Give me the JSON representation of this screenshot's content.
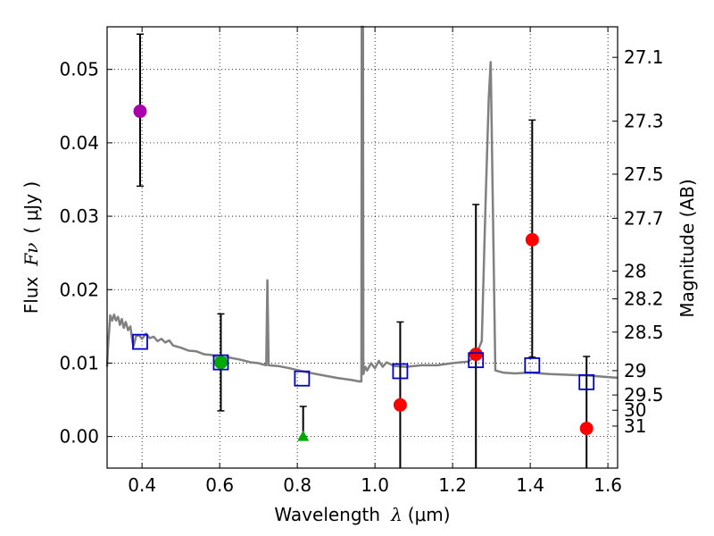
{
  "chart_data": {
    "type": "scatter",
    "title": "",
    "xlabel_main": "Wavelength",
    "xlabel_symbol": "λ",
    "xlabel_unit": "(μm)",
    "ylabel_main": "Flux",
    "ylabel_symbol": "Fν",
    "ylabel_unit": "( μJy )",
    "y2label": "Magnitude (AB)",
    "xlim": [
      0.31,
      1.625
    ],
    "ylim": [
      -0.0043,
      0.0558
    ],
    "grid": true,
    "x_ticks": [
      0.4,
      0.6,
      0.8,
      1.0,
      1.2,
      1.4,
      1.6
    ],
    "x_tick_labels": [
      "0.4",
      "0.6",
      "0.8",
      "1.0",
      "1.2",
      "1.4",
      "1.6"
    ],
    "y_ticks": [
      0.0,
      0.01,
      0.02,
      0.03,
      0.04,
      0.05
    ],
    "y_tick_labels": [
      "0.00",
      "0.01",
      "0.02",
      "0.03",
      "0.04",
      "0.05"
    ],
    "mag_ticks": [
      {
        "label": "27.1",
        "flux": 0.05164
      },
      {
        "label": "27.3",
        "flux": 0.04295
      },
      {
        "label": "27.5",
        "flux": 0.03573
      },
      {
        "label": "27.7",
        "flux": 0.02972
      },
      {
        "label": "28",
        "flux": 0.02254
      },
      {
        "label": "28.2",
        "flux": 0.01875
      },
      {
        "label": "28.5",
        "flux": 0.01422
      },
      {
        "label": "29",
        "flux": 0.00897
      },
      {
        "label": "29.5",
        "flux": 0.00566
      },
      {
        "label": "30",
        "flux": 0.00358
      },
      {
        "label": "31",
        "flux": 0.00142
      }
    ],
    "model_spectrum": {
      "name": "model SED",
      "color": "#808080",
      "points": [
        [
          0.31,
          0.0095
        ],
        [
          0.312,
          0.012
        ],
        [
          0.318,
          0.0165
        ],
        [
          0.323,
          0.0158
        ],
        [
          0.328,
          0.0166
        ],
        [
          0.333,
          0.0158
        ],
        [
          0.338,
          0.0163
        ],
        [
          0.343,
          0.0152
        ],
        [
          0.348,
          0.016
        ],
        [
          0.353,
          0.0148
        ],
        [
          0.358,
          0.0156
        ],
        [
          0.364,
          0.0145
        ],
        [
          0.37,
          0.015
        ],
        [
          0.375,
          0.013
        ],
        [
          0.378,
          0.0123
        ],
        [
          0.385,
          0.0137
        ],
        [
          0.392,
          0.0138
        ],
        [
          0.4,
          0.0133
        ],
        [
          0.41,
          0.014
        ],
        [
          0.42,
          0.0134
        ],
        [
          0.43,
          0.0136
        ],
        [
          0.44,
          0.013
        ],
        [
          0.45,
          0.0133
        ],
        [
          0.46,
          0.0128
        ],
        [
          0.47,
          0.0131
        ],
        [
          0.48,
          0.0124
        ],
        [
          0.5,
          0.0121
        ],
        [
          0.52,
          0.0117
        ],
        [
          0.54,
          0.0116
        ],
        [
          0.56,
          0.0112
        ],
        [
          0.58,
          0.0111
        ],
        [
          0.6,
          0.0106
        ],
        [
          0.62,
          0.0108
        ],
        [
          0.65,
          0.0105
        ],
        [
          0.68,
          0.0101
        ],
        [
          0.7,
          0.01
        ],
        [
          0.72,
          0.0097
        ],
        [
          0.723,
          0.0213
        ],
        [
          0.726,
          0.0097
        ],
        [
          0.75,
          0.0096
        ],
        [
          0.78,
          0.0093
        ],
        [
          0.82,
          0.0088
        ],
        [
          0.86,
          0.0084
        ],
        [
          0.9,
          0.008
        ],
        [
          0.94,
          0.0077
        ],
        [
          0.96,
          0.0075
        ],
        [
          0.965,
          0.0075
        ],
        [
          0.966,
          0.056
        ],
        [
          0.969,
          0.056
        ],
        [
          0.97,
          0.0085
        ],
        [
          0.975,
          0.0095
        ],
        [
          0.98,
          0.009
        ],
        [
          0.99,
          0.01
        ],
        [
          1.0,
          0.0093
        ],
        [
          1.01,
          0.0103
        ],
        [
          1.02,
          0.0095
        ],
        [
          1.03,
          0.0101
        ],
        [
          1.05,
          0.0096
        ],
        [
          1.08,
          0.0095
        ],
        [
          1.12,
          0.0097
        ],
        [
          1.16,
          0.0097
        ],
        [
          1.2,
          0.01
        ],
        [
          1.24,
          0.0102
        ],
        [
          1.26,
          0.011
        ],
        [
          1.275,
          0.013
        ],
        [
          1.285,
          0.032
        ],
        [
          1.293,
          0.046
        ],
        [
          1.298,
          0.051
        ],
        [
          1.303,
          0.034
        ],
        [
          1.31,
          0.009
        ],
        [
          1.33,
          0.0087
        ],
        [
          1.36,
          0.0086
        ],
        [
          1.4,
          0.0087
        ],
        [
          1.45,
          0.0085
        ],
        [
          1.5,
          0.0084
        ],
        [
          1.55,
          0.0083
        ],
        [
          1.6,
          0.0081
        ],
        [
          1.625,
          0.008
        ]
      ]
    },
    "series": [
      {
        "name": "magenta detection",
        "marker": "circle",
        "color": "#aa00aa",
        "points": [
          {
            "x": 0.395,
            "y": 0.0443,
            "err_low": 0.0102,
            "err_high": 0.0105
          }
        ]
      },
      {
        "name": "green detection",
        "marker": "circle",
        "color": "#00aa00",
        "points": [
          {
            "x": 0.603,
            "y": 0.0101,
            "err_low": 0.0066,
            "err_high": 0.0066
          }
        ]
      },
      {
        "name": "green upper limit",
        "marker": "triangle",
        "color": "#00aa00",
        "points": [
          {
            "x": 0.815,
            "y": 0.0,
            "err_low": 0.0,
            "err_high": 0.0041
          }
        ]
      },
      {
        "name": "red detections",
        "marker": "circle",
        "color": "#ff0000",
        "points": [
          {
            "x": 1.065,
            "y": 0.0043,
            "err_low": 0.0092,
            "err_high": 0.0113
          },
          {
            "x": 1.26,
            "y": 0.0112,
            "err_low": 0.016,
            "err_high": 0.0204
          },
          {
            "x": 1.405,
            "y": 0.0268,
            "err_low": 0.016,
            "err_high": 0.0163
          },
          {
            "x": 1.545,
            "y": 0.0011,
            "err_low": 0.0055,
            "err_high": 0.0098
          }
        ]
      },
      {
        "name": "model synthetic photometry",
        "marker": "square-open",
        "color": "#0000cc",
        "points": [
          {
            "x": 0.395,
            "y": 0.0129
          },
          {
            "x": 0.603,
            "y": 0.0101
          },
          {
            "x": 0.812,
            "y": 0.0079
          },
          {
            "x": 1.065,
            "y": 0.0089
          },
          {
            "x": 1.26,
            "y": 0.0104
          },
          {
            "x": 1.405,
            "y": 0.0097
          },
          {
            "x": 1.545,
            "y": 0.0074
          }
        ]
      }
    ]
  }
}
